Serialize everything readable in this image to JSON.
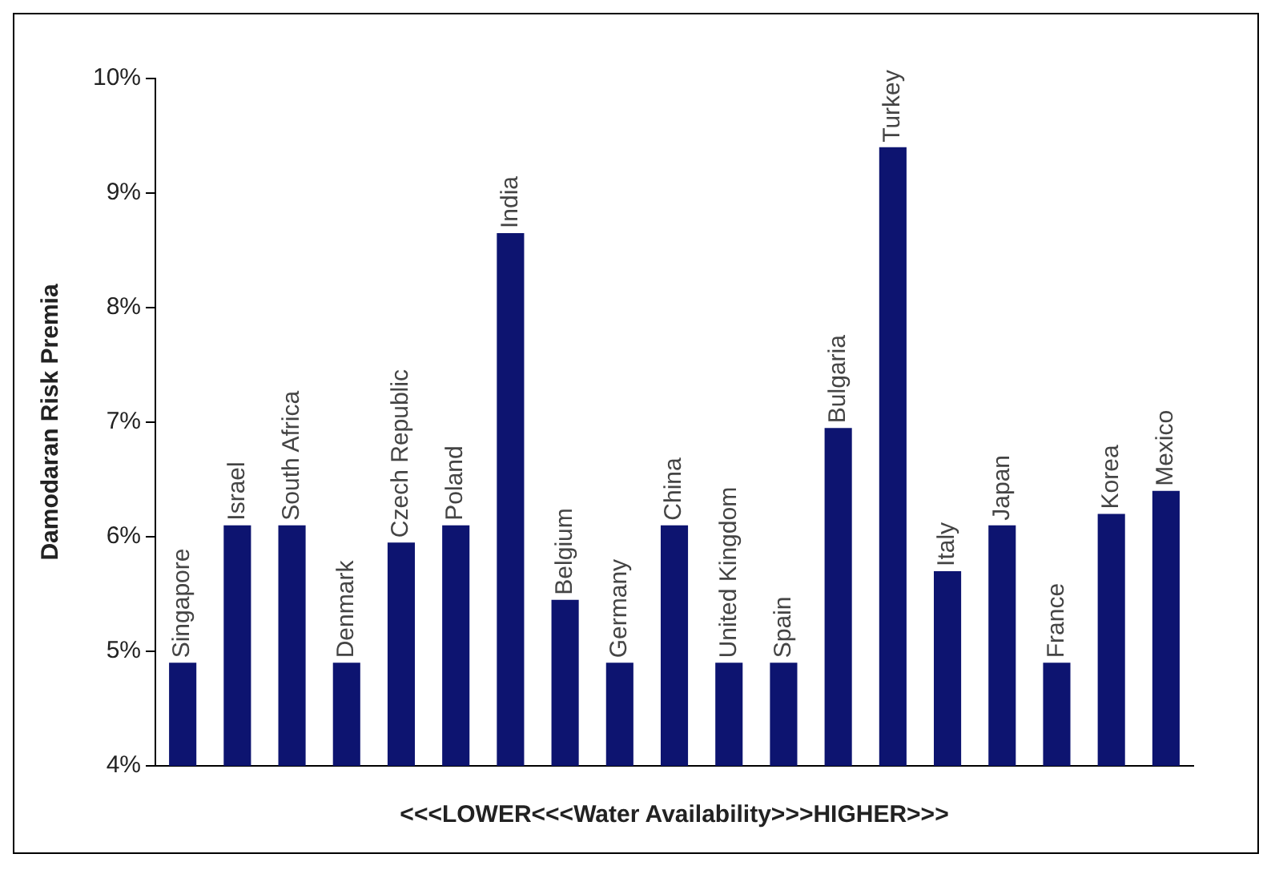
{
  "chart_data": {
    "type": "bar",
    "xlabel": "<<<LOWER<<<Water Availability>>>HIGHER>>>",
    "ylabel": "Damodaran Risk Premia",
    "categories": [
      "Singapore",
      "Israel",
      "South Africa",
      "Denmark",
      "Czech Republic",
      "Poland",
      "India",
      "Belgium",
      "Germany",
      "China",
      "United Kingdom",
      "Spain",
      "Bulgaria",
      "Turkey",
      "Italy",
      "Japan",
      "France",
      "Korea",
      "Mexico"
    ],
    "values": [
      4.9,
      6.1,
      6.1,
      4.9,
      5.95,
      6.1,
      8.65,
      5.45,
      4.9,
      6.1,
      4.9,
      4.9,
      6.95,
      9.4,
      5.7,
      6.1,
      4.9,
      6.2,
      6.4
    ],
    "color": "#0d1470",
    "ylim": [
      4,
      10
    ],
    "yticks": [
      {
        "value": 4,
        "label": "4%"
      },
      {
        "value": 5,
        "label": "5%"
      },
      {
        "value": 6,
        "label": "6%"
      },
      {
        "value": 7,
        "label": "7%"
      },
      {
        "value": 8,
        "label": "8%"
      },
      {
        "value": 9,
        "label": "9%"
      },
      {
        "value": 10,
        "label": "10%"
      }
    ],
    "grid": false,
    "legend": false
  }
}
